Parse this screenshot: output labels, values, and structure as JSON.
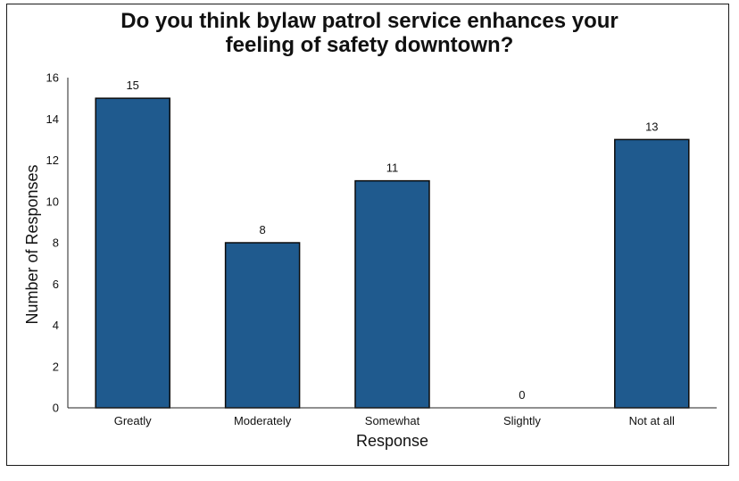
{
  "chart_data": {
    "type": "bar",
    "title_line1": "Do you think bylaw patrol service enhances your",
    "title_line2": "feeling of safety downtown?",
    "categories": [
      "Greatly",
      "Moderately",
      "Somewhat",
      "Slightly",
      "Not at all"
    ],
    "values": [
      15,
      8,
      11,
      0,
      13
    ],
    "value_labels": [
      "15",
      "8",
      "11",
      "0",
      "13"
    ],
    "xlabel": "Response",
    "ylabel": "Number of Responses",
    "ylim": [
      0,
      16
    ],
    "yticks": [
      0,
      2,
      4,
      6,
      8,
      10,
      12,
      14,
      16
    ],
    "ytick_labels": [
      "0",
      "2",
      "4",
      "6",
      "8",
      "10",
      "12",
      "14",
      "16"
    ],
    "grid": false,
    "legend": "none",
    "bar_color": "#1f5a8e",
    "bar_edge_color": "#0b0b0b"
  }
}
